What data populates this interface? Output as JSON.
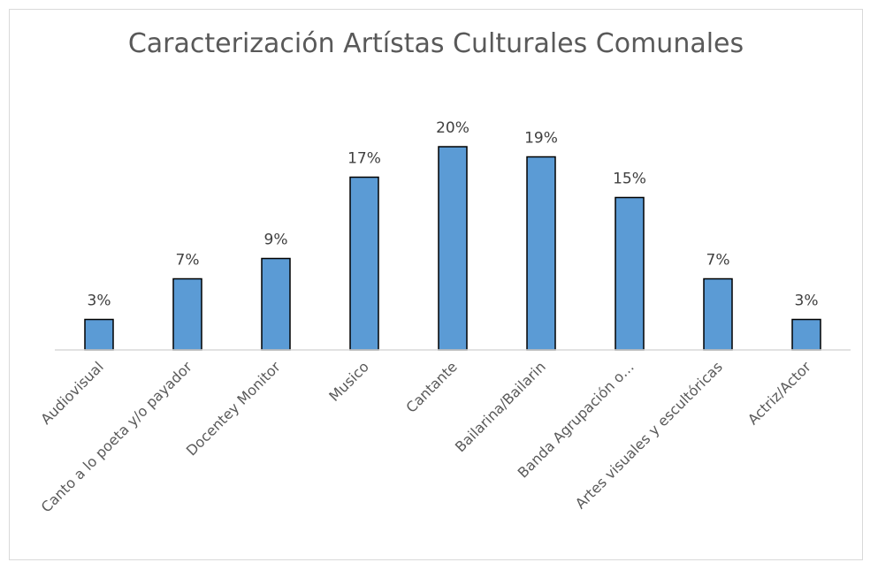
{
  "chart_data": {
    "type": "bar",
    "title": "Caracterización Artístas Culturales Comunales",
    "categories": [
      "Audiovisual",
      "Canto a lo poeta y/o payador",
      "Docentey Monitor",
      "Musico",
      "Cantante",
      "Bailarina/Bailarin",
      "Banda Agrupación o…",
      "Artes visuales y escultóricas",
      "Actriz/Actor"
    ],
    "values": [
      3,
      7,
      9,
      17,
      20,
      19,
      15,
      7,
      3
    ],
    "data_labels": [
      "3%",
      "7%",
      "9%",
      "17%",
      "20%",
      "19%",
      "15%",
      "7%",
      "3%"
    ],
    "ylim": [
      0,
      20
    ],
    "y_axis_visible": false,
    "grid": false,
    "legend": "none",
    "colors": {
      "bar_fill": "#5b9bd5",
      "bar_stroke": "#000000",
      "axis": "#d9d9d9",
      "title": "#595959",
      "labels": "#404040"
    }
  }
}
